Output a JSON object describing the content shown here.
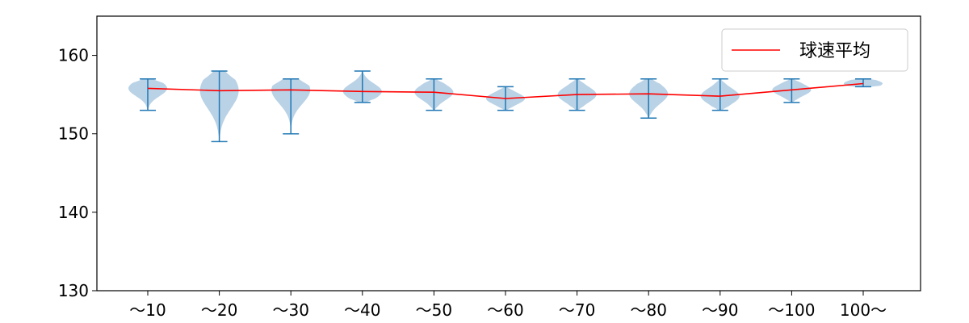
{
  "chart_data": {
    "type": "violin",
    "title": "",
    "xlabel": "",
    "ylabel": "",
    "ylim": [
      130,
      165
    ],
    "yticks": [
      130,
      140,
      150,
      160
    ],
    "grid": false,
    "legend": {
      "placement": "top-right",
      "entries": [
        "球速平均"
      ]
    },
    "categories": [
      "～10",
      "～20",
      "～30",
      "～40",
      "～50",
      "～60",
      "～70",
      "～80",
      "～90",
      "～100",
      "100～"
    ],
    "violins": [
      {
        "category": "～10",
        "min": 153,
        "max": 157,
        "mean": 155.8
      },
      {
        "category": "～20",
        "min": 149,
        "max": 158,
        "mean": 155.5
      },
      {
        "category": "～30",
        "min": 150,
        "max": 157,
        "mean": 155.6
      },
      {
        "category": "～40",
        "min": 154,
        "max": 158,
        "mean": 155.4
      },
      {
        "category": "～50",
        "min": 153,
        "max": 157,
        "mean": 155.3
      },
      {
        "category": "～60",
        "min": 153,
        "max": 156,
        "mean": 154.5
      },
      {
        "category": "～70",
        "min": 153,
        "max": 157,
        "mean": 155.0
      },
      {
        "category": "～80",
        "min": 152,
        "max": 157,
        "mean": 155.1
      },
      {
        "category": "～90",
        "min": 153,
        "max": 157,
        "mean": 154.8
      },
      {
        "category": "～100",
        "min": 154,
        "max": 157,
        "mean": 155.6
      },
      {
        "category": "100～",
        "min": 156,
        "max": 157,
        "mean": 156.4
      }
    ],
    "series": [
      {
        "name": "球速平均",
        "color": "#ff0000",
        "values": [
          155.8,
          155.5,
          155.6,
          155.4,
          155.3,
          154.5,
          155.0,
          155.1,
          154.8,
          155.6,
          156.4
        ]
      }
    ],
    "colors": {
      "violin_fill": "#b3cde3",
      "violin_edge": "#1f77b4",
      "mean_line": "#ff0000"
    }
  }
}
